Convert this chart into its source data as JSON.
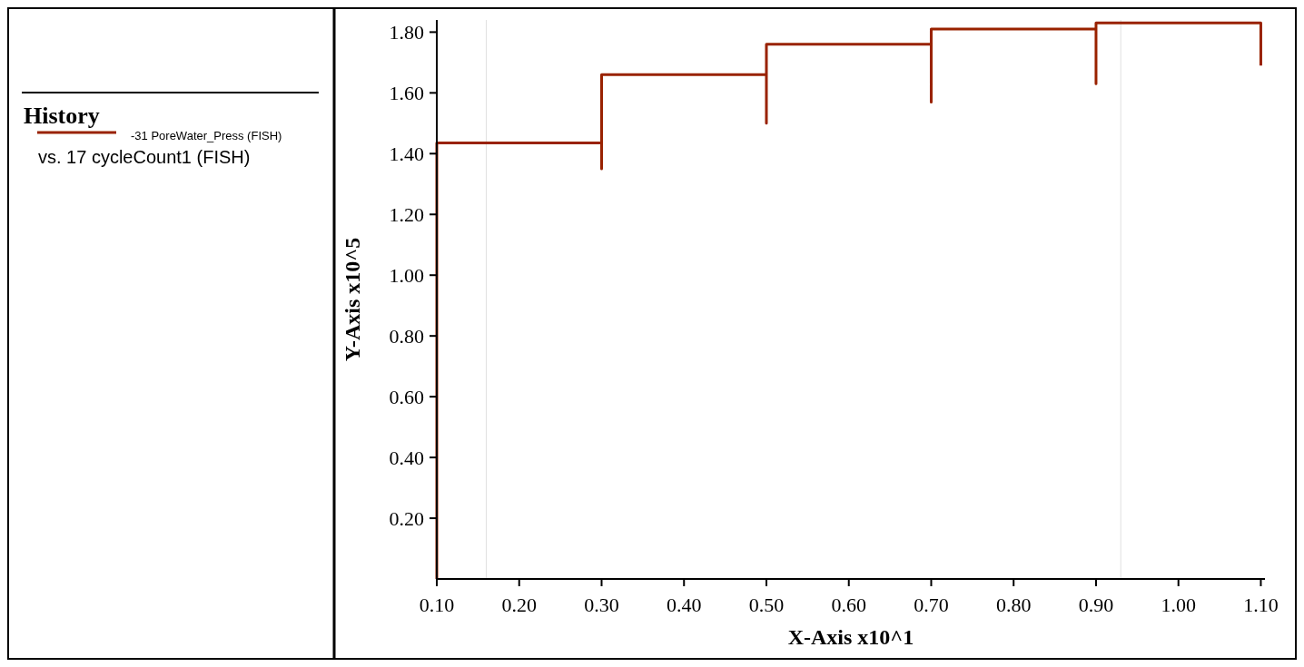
{
  "chart_data": {
    "type": "line",
    "legend_title": "History",
    "xlabel": "X-Axis x10^1",
    "ylabel": "Y-Axis x10^5",
    "annotations": [
      "vs. 17 cycleCount1 (FISH)"
    ],
    "series": [
      {
        "name": "-31 PoreWater_Press (FISH)",
        "color": "#992200",
        "x": [
          0.1,
          0.1,
          0.3,
          0.3,
          0.3,
          0.5,
          0.5,
          0.5,
          0.7,
          0.7,
          0.7,
          0.9,
          0.9,
          0.9,
          1.1,
          1.1
        ],
        "values": [
          0,
          1.435,
          1.435,
          1.35,
          1.66,
          1.66,
          1.5,
          1.76,
          1.76,
          1.57,
          1.81,
          1.81,
          1.63,
          1.83,
          1.83,
          1.69
        ]
      }
    ],
    "xlim": [
      0.1,
      1.105
    ],
    "ylim": [
      0,
      1.84
    ],
    "xticks": [
      {
        "value": 0.1,
        "label": "0.10"
      },
      {
        "value": 0.2,
        "label": "0.20"
      },
      {
        "value": 0.3,
        "label": "0.30"
      },
      {
        "value": 0.4,
        "label": "0.40"
      },
      {
        "value": 0.5,
        "label": "0.50"
      },
      {
        "value": 0.6,
        "label": "0.60"
      },
      {
        "value": 0.7,
        "label": "0.70"
      },
      {
        "value": 0.8,
        "label": "0.80"
      },
      {
        "value": 0.9,
        "label": "0.90"
      },
      {
        "value": 1.0,
        "label": "1.00"
      },
      {
        "value": 1.1,
        "label": "1.10"
      }
    ],
    "yticks": [
      {
        "value": 0.2,
        "label": "0.20"
      },
      {
        "value": 0.4,
        "label": "0.40"
      },
      {
        "value": 0.6,
        "label": "0.60"
      },
      {
        "value": 0.8,
        "label": "0.80"
      },
      {
        "value": 1.0,
        "label": "1.00"
      },
      {
        "value": 1.2,
        "label": "1.20"
      },
      {
        "value": 1.4,
        "label": "1.40"
      },
      {
        "value": 1.6,
        "label": "1.60"
      },
      {
        "value": 1.8,
        "label": "1.80"
      }
    ],
    "ref_lines": [
      {
        "axis": "x",
        "value": 0.16,
        "color": "#e0e0e0"
      },
      {
        "axis": "x",
        "value": 0.93,
        "color": "#e0e0e0"
      }
    ],
    "legend": "left",
    "marker": "none",
    "line_style": "solid"
  }
}
